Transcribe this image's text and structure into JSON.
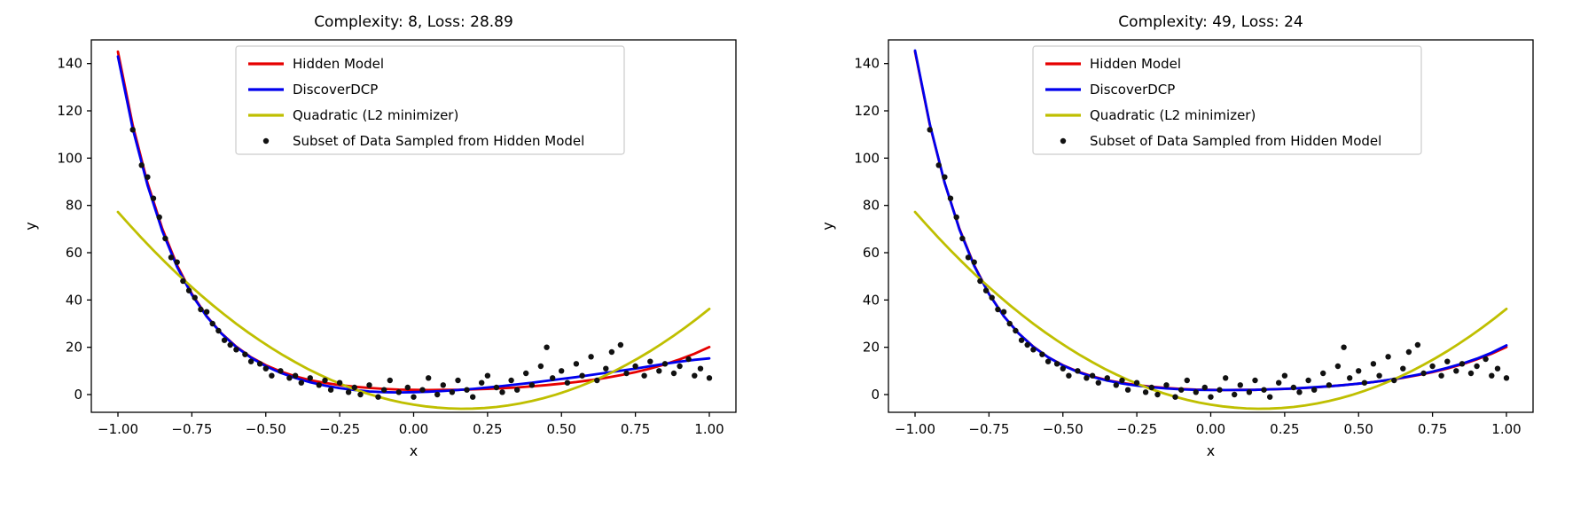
{
  "figure": {
    "background": "#ffffff"
  },
  "chart_data": {
    "type": "line",
    "grid": false,
    "legend_position": "upper center-right inside axes",
    "curve_x": [
      -1.0,
      -0.95,
      -0.9,
      -0.85,
      -0.8,
      -0.75,
      -0.7,
      -0.65,
      -0.6,
      -0.55,
      -0.5,
      -0.45,
      -0.4,
      -0.35,
      -0.3,
      -0.25,
      -0.2,
      -0.15,
      -0.1,
      -0.05,
      0.0,
      0.05,
      0.1,
      0.15,
      0.2,
      0.25,
      0.3,
      0.35,
      0.4,
      0.45,
      0.5,
      0.55,
      0.6,
      0.65,
      0.7,
      0.75,
      0.8,
      0.85,
      0.9,
      0.95,
      1.0
    ],
    "legend": [
      {
        "label": "Hidden Model",
        "type": "line",
        "color": "#e60000"
      },
      {
        "label": "DiscoverDCP",
        "type": "line",
        "color": "#0000ee"
      },
      {
        "label": "Quadratic (L2 minimizer)",
        "type": "line",
        "color": "#bfbf00"
      },
      {
        "label": "Subset of Data Sampled from Hidden Model",
        "type": "marker",
        "color": "#111111"
      }
    ],
    "scatter": {
      "color": "#111111",
      "points": [
        [
          -0.95,
          112
        ],
        [
          -0.92,
          97
        ],
        [
          -0.9,
          92
        ],
        [
          -0.88,
          83
        ],
        [
          -0.86,
          75
        ],
        [
          -0.84,
          66
        ],
        [
          -0.82,
          58
        ],
        [
          -0.8,
          56
        ],
        [
          -0.78,
          48
        ],
        [
          -0.76,
          44
        ],
        [
          -0.74,
          41
        ],
        [
          -0.72,
          36
        ],
        [
          -0.7,
          35
        ],
        [
          -0.68,
          30
        ],
        [
          -0.66,
          27
        ],
        [
          -0.64,
          23
        ],
        [
          -0.62,
          21
        ],
        [
          -0.6,
          19
        ],
        [
          -0.57,
          17
        ],
        [
          -0.55,
          14
        ],
        [
          -0.52,
          13
        ],
        [
          -0.5,
          11
        ],
        [
          -0.48,
          8
        ],
        [
          -0.45,
          10
        ],
        [
          -0.42,
          7
        ],
        [
          -0.4,
          8
        ],
        [
          -0.38,
          5
        ],
        [
          -0.35,
          7
        ],
        [
          -0.32,
          4
        ],
        [
          -0.3,
          6
        ],
        [
          -0.28,
          2
        ],
        [
          -0.25,
          5
        ],
        [
          -0.22,
          1
        ],
        [
          -0.2,
          3
        ],
        [
          -0.18,
          0
        ],
        [
          -0.15,
          4
        ],
        [
          -0.12,
          -1
        ],
        [
          -0.1,
          2
        ],
        [
          -0.08,
          6
        ],
        [
          -0.05,
          1
        ],
        [
          -0.02,
          3
        ],
        [
          0.0,
          -1
        ],
        [
          0.03,
          2
        ],
        [
          0.05,
          7
        ],
        [
          0.08,
          0
        ],
        [
          0.1,
          4
        ],
        [
          0.13,
          1
        ],
        [
          0.15,
          6
        ],
        [
          0.18,
          2
        ],
        [
          0.2,
          -1
        ],
        [
          0.23,
          5
        ],
        [
          0.25,
          8
        ],
        [
          0.28,
          3
        ],
        [
          0.3,
          1
        ],
        [
          0.33,
          6
        ],
        [
          0.35,
          2
        ],
        [
          0.38,
          9
        ],
        [
          0.4,
          4
        ],
        [
          0.43,
          12
        ],
        [
          0.45,
          20
        ],
        [
          0.47,
          7
        ],
        [
          0.5,
          10
        ],
        [
          0.52,
          5
        ],
        [
          0.55,
          13
        ],
        [
          0.57,
          8
        ],
        [
          0.6,
          16
        ],
        [
          0.62,
          6
        ],
        [
          0.65,
          11
        ],
        [
          0.67,
          18
        ],
        [
          0.7,
          21
        ],
        [
          0.72,
          9
        ],
        [
          0.75,
          12
        ],
        [
          0.78,
          8
        ],
        [
          0.8,
          14
        ],
        [
          0.83,
          10
        ],
        [
          0.85,
          13
        ],
        [
          0.88,
          9
        ],
        [
          0.9,
          12
        ],
        [
          0.93,
          15
        ],
        [
          0.95,
          8
        ],
        [
          0.97,
          11
        ],
        [
          1.0,
          7
        ]
      ]
    },
    "panels": [
      {
        "title": "Complexity: 8, Loss: 28.89",
        "xlabel": "x",
        "ylabel": "y",
        "xlim": [
          -1.09,
          1.09
        ],
        "ylim": [
          -7.5,
          150
        ],
        "xticks": [
          -1.0,
          -0.75,
          -0.5,
          -0.25,
          0.0,
          0.25,
          0.5,
          0.75,
          1.0
        ],
        "xtick_labels": [
          "−1.00",
          "−0.75",
          "−0.50",
          "−0.25",
          "0.00",
          "0.25",
          "0.50",
          "0.75",
          "1.00"
        ],
        "yticks": [
          0,
          20,
          40,
          60,
          80,
          100,
          120,
          140
        ],
        "ytick_labels": [
          "0",
          "20",
          "40",
          "60",
          "80",
          "100",
          "120",
          "140"
        ],
        "series": {
          "hidden": {
            "name": "Hidden Model",
            "color": "#e60000",
            "y": [
              145.0,
              114.0,
              89.5,
              70.2,
              54.7,
              42.6,
              33.2,
              25.9,
              20.3,
              15.8,
              12.4,
              9.8,
              7.7,
              6.1,
              4.9,
              4.0,
              3.3,
              2.8,
              2.4,
              2.1,
              2.0,
              1.9,
              2.0,
              2.0,
              2.2,
              2.4,
              2.7,
              3.0,
              3.5,
              4.0,
              4.6,
              5.3,
              6.1,
              7.1,
              8.2,
              9.5,
              11.0,
              12.8,
              14.9,
              17.3,
              20.1
            ]
          },
          "discover": {
            "name": "DiscoverDCP",
            "color": "#0000ee",
            "y": [
              143.0,
              112.5,
              88.5,
              69.2,
              54.0,
              42.2,
              33.0,
              25.8,
              20.1,
              15.6,
              12.0,
              9.2,
              7.0,
              5.2,
              3.8,
              2.7,
              1.9,
              1.3,
              1.0,
              0.9,
              1.0,
              1.2,
              1.5,
              1.9,
              2.4,
              3.0,
              3.6,
              4.3,
              5.0,
              5.8,
              6.6,
              7.4,
              8.3,
              9.2,
              10.1,
              11.0,
              12.0,
              13.0,
              13.9,
              14.7,
              15.3
            ]
          },
          "quadratic": {
            "name": "Quadratic (L2 minimizer)",
            "color": "#bfbf00",
            "a": 61.0,
            "c": 0.168,
            "d": -6.0,
            "endpoints_y": [
              77.2,
              36.2
            ]
          }
        }
      },
      {
        "title": "Complexity: 49, Loss: 24",
        "xlabel": "x",
        "ylabel": "y",
        "xlim": [
          -1.09,
          1.09
        ],
        "ylim": [
          -7.5,
          150
        ],
        "xticks": [
          -1.0,
          -0.75,
          -0.5,
          -0.25,
          0.0,
          0.25,
          0.5,
          0.75,
          1.0
        ],
        "xtick_labels": [
          "−1.00",
          "−0.75",
          "−0.50",
          "−0.25",
          "0.00",
          "0.25",
          "0.50",
          "0.75",
          "1.00"
        ],
        "yticks": [
          0,
          20,
          40,
          60,
          80,
          100,
          120,
          140
        ],
        "ytick_labels": [
          "0",
          "20",
          "40",
          "60",
          "80",
          "100",
          "120",
          "140"
        ],
        "series": {
          "hidden": {
            "name": "Hidden Model",
            "color": "#e60000",
            "y": [
              145.0,
              114.0,
              89.5,
              70.2,
              54.7,
              42.6,
              33.2,
              25.9,
              20.3,
              15.8,
              12.4,
              9.8,
              7.7,
              6.1,
              4.9,
              4.0,
              3.3,
              2.8,
              2.4,
              2.1,
              2.0,
              1.9,
              2.0,
              2.0,
              2.2,
              2.4,
              2.7,
              3.0,
              3.5,
              4.0,
              4.6,
              5.3,
              6.1,
              7.1,
              8.2,
              9.5,
              11.0,
              12.8,
              14.9,
              17.3,
              20.1
            ]
          },
          "discover": {
            "name": "DiscoverDCP",
            "color": "#0000ee",
            "y": [
              145.5,
              114.3,
              89.6,
              69.9,
              54.4,
              42.5,
              33.1,
              25.9,
              20.2,
              15.8,
              12.3,
              9.6,
              7.5,
              5.9,
              4.7,
              3.8,
              3.1,
              2.6,
              2.2,
              2.0,
              1.9,
              1.9,
              1.9,
              2.0,
              2.2,
              2.4,
              2.7,
              3.1,
              3.5,
              4.0,
              4.6,
              5.3,
              6.2,
              7.2,
              8.4,
              9.7,
              11.3,
              13.1,
              15.2,
              17.7,
              20.8
            ]
          },
          "quadratic": {
            "name": "Quadratic (L2 minimizer)",
            "color": "#bfbf00",
            "a": 61.0,
            "c": 0.168,
            "d": -6.0,
            "endpoints_y": [
              77.2,
              36.2
            ]
          }
        }
      }
    ]
  }
}
